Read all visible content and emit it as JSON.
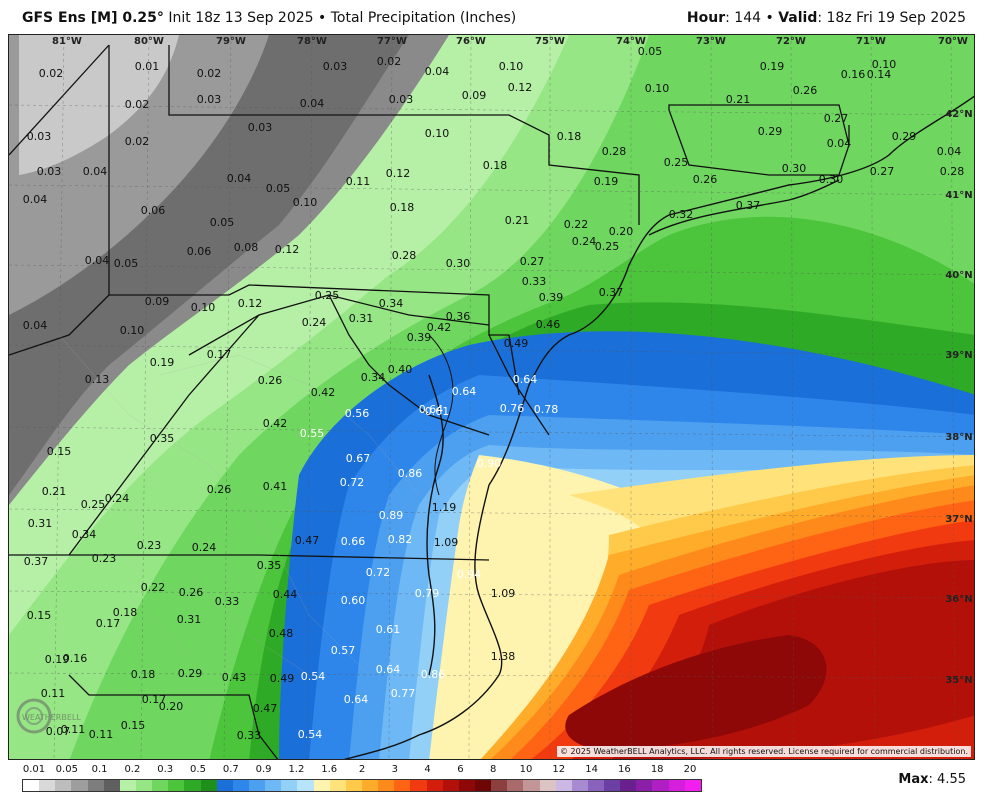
{
  "header": {
    "model": "GFS Ens [M] 0.25",
    "degree": "°",
    "init": "Init 18z 13 Sep 2025",
    "product": "Total Precipitation (Inches)",
    "hour_label": "Hour",
    "hour_value": "144",
    "valid_label": "Valid",
    "valid_value": "18z Fri 19 Sep 2025",
    "bullet": "•"
  },
  "longitude_labels": [
    "81°W",
    "80°W",
    "79°W",
    "78°W",
    "77°W",
    "76°W",
    "75°W",
    "74°W",
    "73°W",
    "72°W",
    "71°W",
    "70°W"
  ],
  "latitude_labels": [
    "42°N",
    "41°N",
    "40°N",
    "39°N",
    "38°N",
    "37°N",
    "36°N",
    "35°N"
  ],
  "values": [
    "0.02",
    "0.01",
    "0.02",
    "0.03",
    "0.02",
    "0.04",
    "0.10",
    "0.05",
    "0.10",
    "0.19",
    "0.16",
    "0.10",
    "0.02",
    "0.03",
    "0.04",
    "0.03",
    "0.09",
    "0.12",
    "0.21",
    "0.26",
    "0.14",
    "0.27",
    "0.03",
    "0.02",
    "0.03",
    "0.10",
    "0.18",
    "0.28",
    "0.29",
    "0.29",
    "0.27",
    "0.04",
    "0.04",
    "0.04",
    "0.03",
    "0.04",
    "0.05",
    "0.10",
    "0.11",
    "0.12",
    "0.18",
    "0.19",
    "0.25",
    "0.26",
    "0.30",
    "0.30",
    "0.28",
    "0.04",
    "0.06",
    "0.05",
    "0.18",
    "0.21",
    "0.20",
    "0.32",
    "0.37",
    "0.04",
    "0.05",
    "0.06",
    "0.08",
    "0.12",
    "0.28",
    "0.30",
    "0.22",
    "0.24",
    "0.25",
    "0.27",
    "0.33",
    "0.39",
    "0.37",
    "0.09",
    "0.10",
    "0.12",
    "0.25",
    "0.34",
    "0.24",
    "0.31",
    "0.42",
    "0.36",
    "0.46",
    "0.04",
    "0.10",
    "0.17",
    "0.19",
    "0.39",
    "0.49",
    "0.13",
    "0.26",
    "0.40",
    "0.34",
    "0.64",
    "0.64",
    "0.42",
    "0.76",
    "0.78",
    "0.61",
    "0.64",
    "0.35",
    "0.42",
    "0.56",
    "0.55",
    "0.15",
    "0.67",
    "0.86",
    "0.90",
    "0.21",
    "0.26",
    "0.72",
    "0.25",
    "0.24",
    "0.41",
    "1.19",
    "0.89",
    "0.31",
    "0.34",
    "0.47",
    "0.66",
    "0.82",
    "1.09",
    "0.37",
    "0.23",
    "0.24",
    "0.23",
    "0.35",
    "0.72",
    "0.94",
    "0.22",
    "0.26",
    "0.44",
    "0.79",
    "1.09",
    "0.33",
    "0.60",
    "0.15",
    "0.18",
    "0.31",
    "0.17",
    "0.48",
    "0.61",
    "0.57",
    "1.38",
    "0.19",
    "0.16",
    "0.18",
    "0.29",
    "0.43",
    "0.49",
    "0.54",
    "0.64",
    "0.86",
    "0.11",
    "0.17",
    "0.11",
    "0.20",
    "0.47",
    "0.77",
    "0.07",
    "0.15",
    "0.64",
    "0.11",
    "0.33",
    "0.54"
  ],
  "copyright": "© 2025 WeatherBELL Analytics, LLC. All rights reserved. License required for commercial distribution.",
  "legend": {
    "labels": [
      "0.01",
      "0.05",
      "0.1",
      "0.2",
      "0.3",
      "0.5",
      "0.7",
      "0.9",
      "1.2",
      "1.6",
      "2",
      "3",
      "4",
      "6",
      "8",
      "10",
      "12",
      "14",
      "16",
      "18",
      "20"
    ],
    "colors": [
      "#ffffff",
      "#d9d9d9",
      "#bdbdbd",
      "#9e9e9e",
      "#7d7d7d",
      "#5f5f5f",
      "#b6f0a6",
      "#96e685",
      "#6fd760",
      "#4cc43b",
      "#2faa26",
      "#1d8f1a",
      "#1b6fd8",
      "#2f86ea",
      "#4d9ff0",
      "#6db8f5",
      "#93d0f8",
      "#b8e4fb",
      "#fff3b0",
      "#ffe27a",
      "#ffc94a",
      "#ffac2a",
      "#ff8a1c",
      "#ff6414",
      "#f23a10",
      "#d41e0c",
      "#b4100a",
      "#8e0808",
      "#6e0606",
      "#8c3f3f",
      "#a86a6a",
      "#c29696",
      "#dcc4c4",
      "#cbb8e4",
      "#a88ad0",
      "#8862bc",
      "#6c3fa4",
      "#6a1f8f",
      "#8c1fa8",
      "#b01fc4",
      "#d61fdc",
      "#f21ff0"
    ]
  },
  "max_label": "Max",
  "max_value": "4.55",
  "logo_text": "WEATHERBELL"
}
